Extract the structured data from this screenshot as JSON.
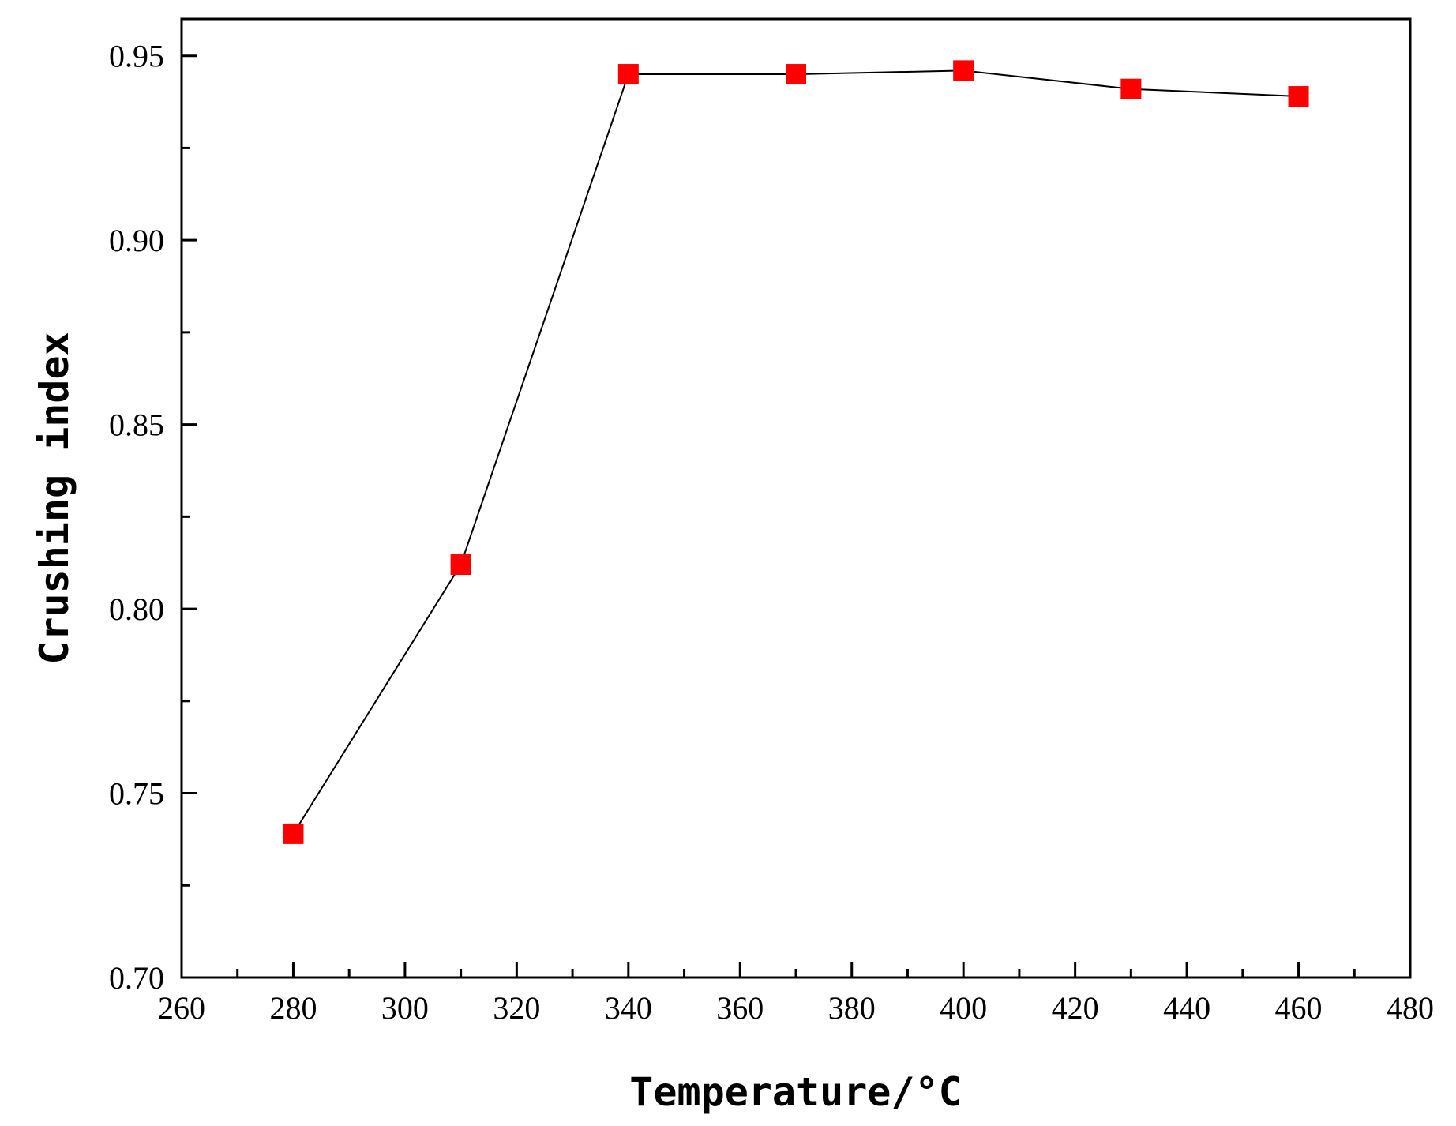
{
  "chart_data": {
    "type": "line",
    "title": "",
    "xlabel": "Temperature/°C",
    "ylabel": "Crushing index",
    "xlim": [
      260,
      480
    ],
    "ylim": [
      0.7,
      0.96
    ],
    "x_ticks": [
      260,
      280,
      300,
      320,
      340,
      360,
      380,
      400,
      420,
      440,
      460,
      480
    ],
    "x_tick_labels": [
      "260",
      "280",
      "300",
      "320",
      "340",
      "360",
      "380",
      "400",
      "420",
      "440",
      "460",
      "480"
    ],
    "y_ticks": [
      0.7,
      0.75,
      0.8,
      0.85,
      0.9,
      0.95
    ],
    "y_tick_labels": [
      "0.70",
      "0.75",
      "0.80",
      "0.85",
      "0.90",
      "0.95"
    ],
    "grid": false,
    "series": [
      {
        "x": [
          280,
          310,
          340,
          370,
          400,
          430,
          460
        ],
        "y": [
          0.739,
          0.812,
          0.945,
          0.945,
          0.946,
          0.941,
          0.939
        ],
        "marker": "square",
        "marker_color": "#ff0000",
        "line_color": "#000000"
      }
    ]
  }
}
